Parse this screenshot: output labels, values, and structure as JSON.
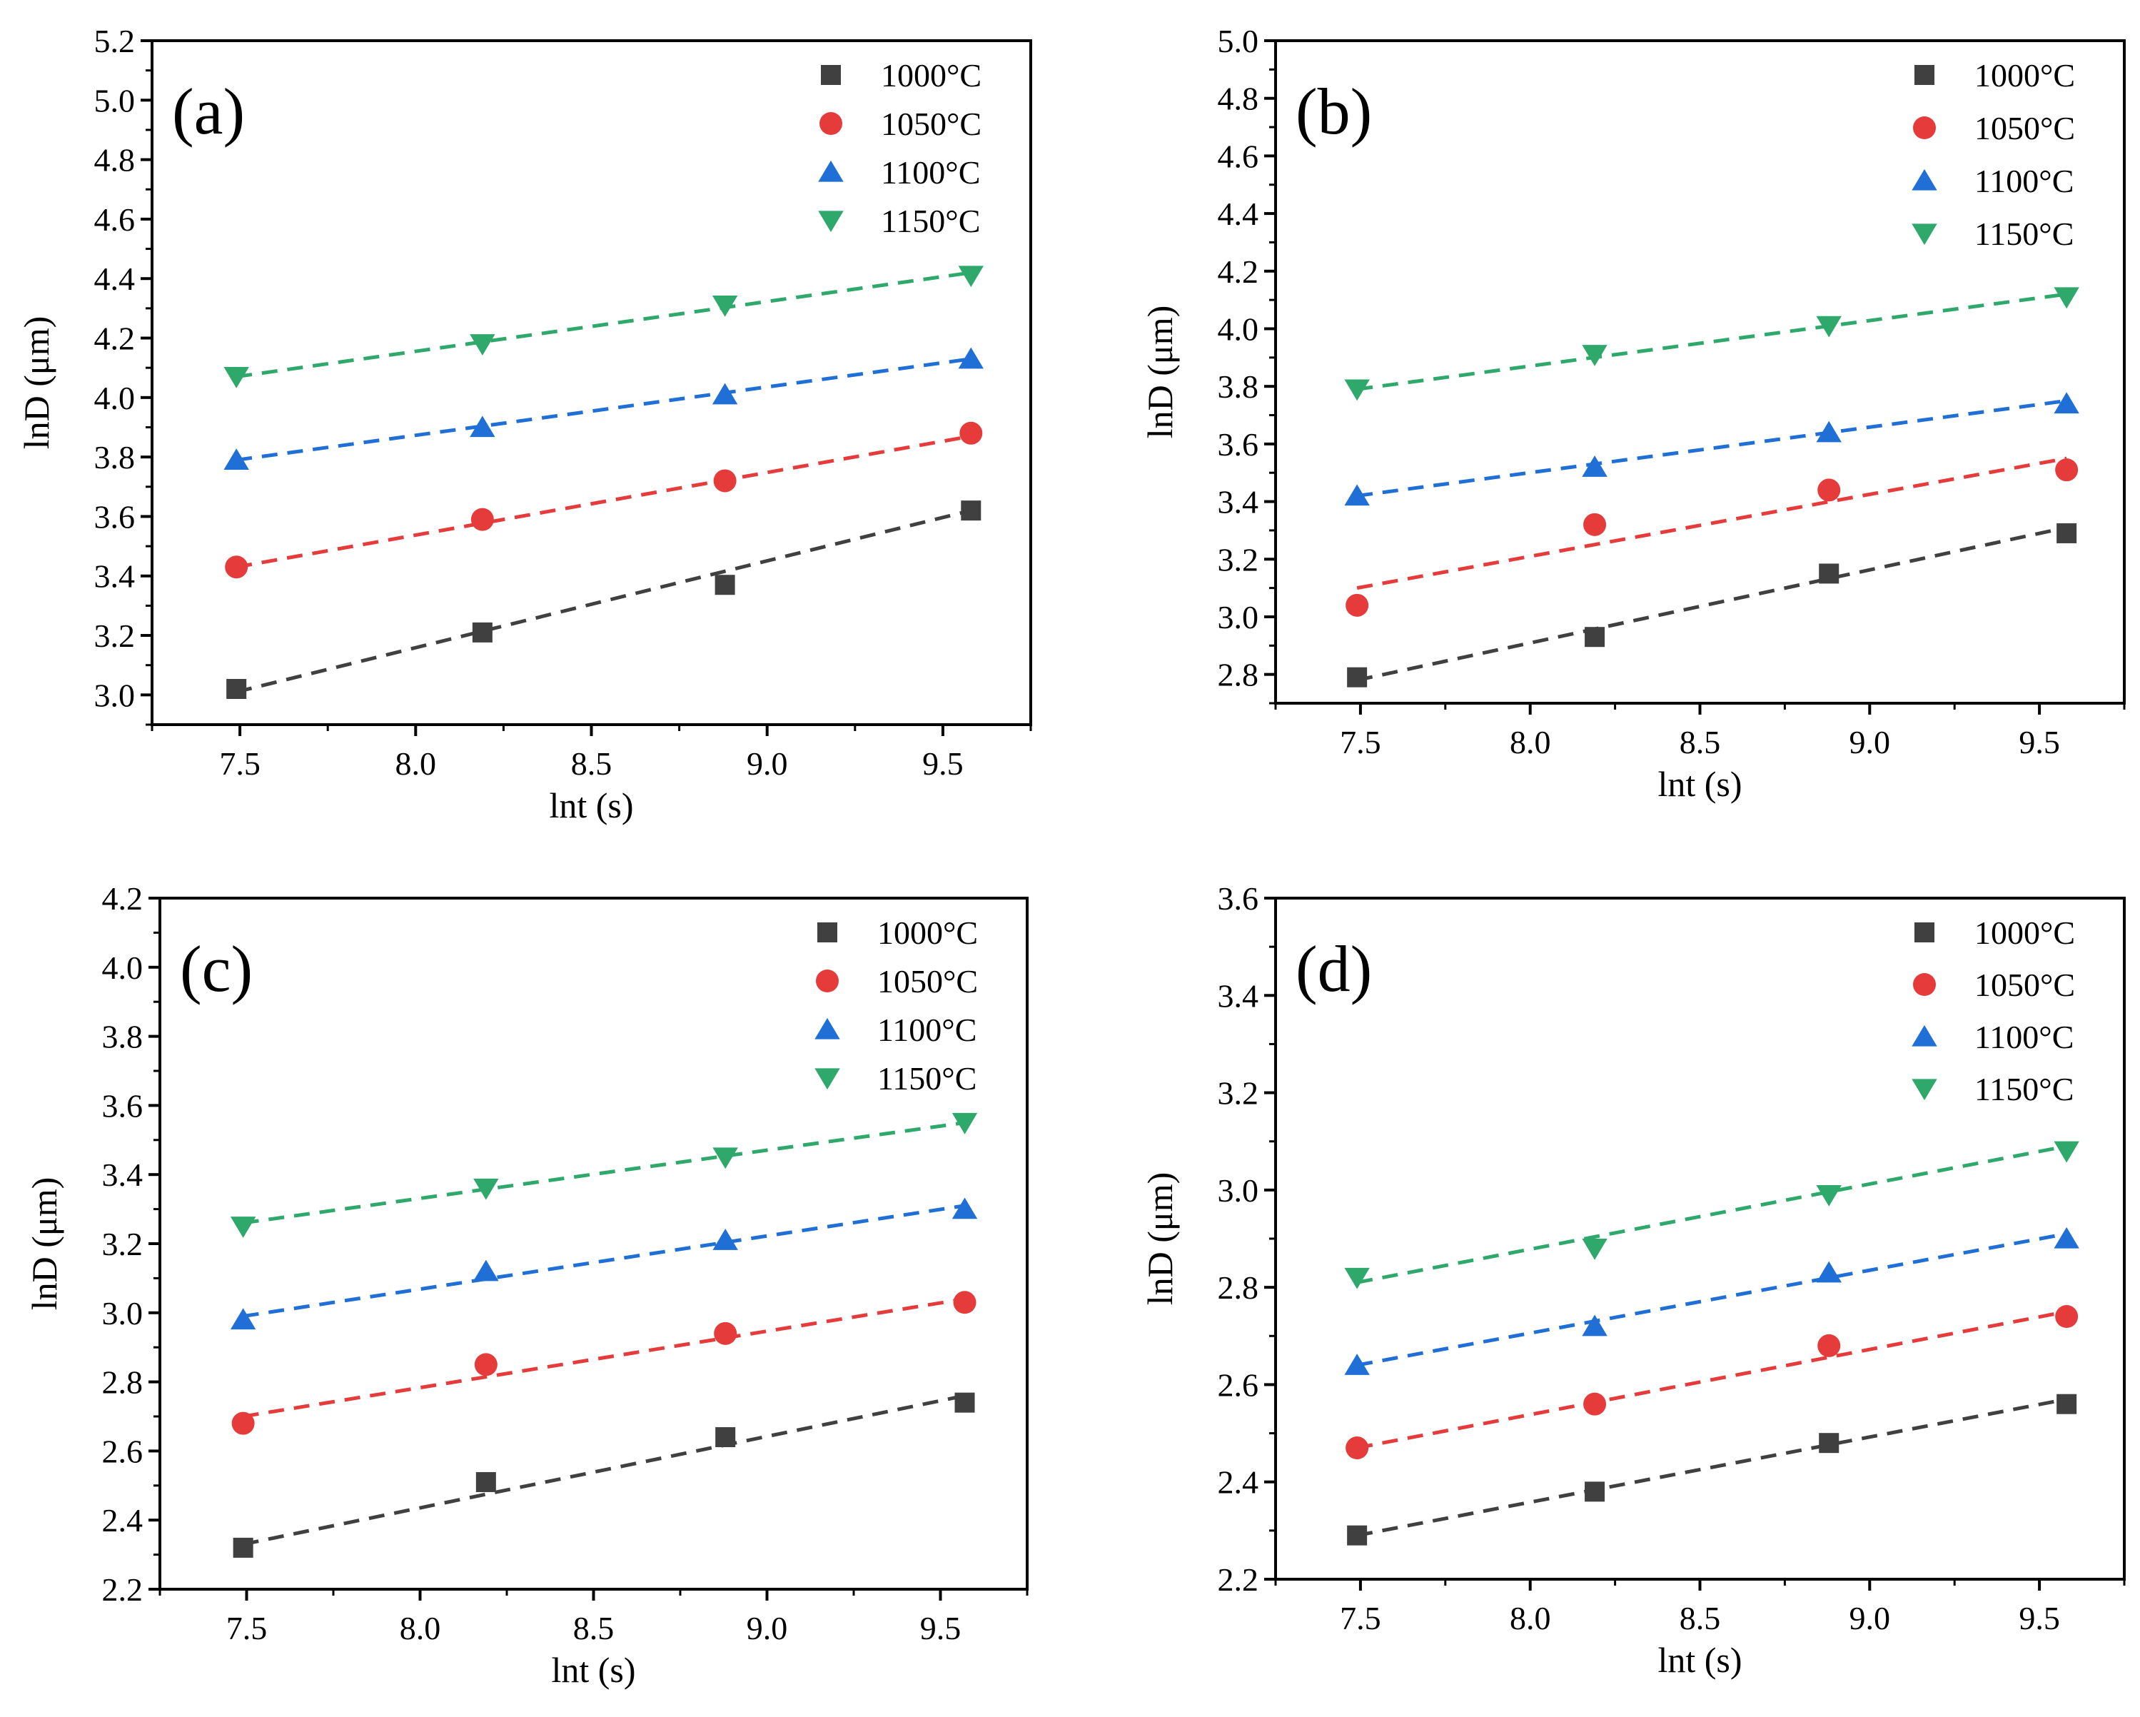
{
  "chart_data": [
    {
      "type": "scatter",
      "panel_label": "(a)",
      "xlabel": "lnt (s)",
      "ylabel": "lnD (μm)",
      "xlim": [
        7.25,
        9.75
      ],
      "ylim": [
        2.9,
        5.2
      ],
      "x_ticks": [
        "7.5",
        "8.0",
        "8.5",
        "9.0",
        "9.5"
      ],
      "y_ticks": [
        "3.0",
        "3.2",
        "3.4",
        "3.6",
        "3.8",
        "4.0",
        "4.2",
        "4.4",
        "4.6",
        "4.8",
        "5.0",
        "5.2"
      ],
      "x": [
        7.49,
        8.19,
        8.88,
        9.58
      ],
      "legend_position": "top-right",
      "series": [
        {
          "name": "1000°C",
          "values": [
            3.02,
            3.21,
            3.37,
            3.62
          ],
          "fit": [
            3.01,
            3.62
          ]
        },
        {
          "name": "1050°C",
          "values": [
            3.43,
            3.59,
            3.72,
            3.88
          ],
          "fit": [
            3.43,
            3.87
          ]
        },
        {
          "name": "1100°C",
          "values": [
            3.79,
            3.9,
            4.01,
            4.13
          ],
          "fit": [
            3.79,
            4.13
          ]
        },
        {
          "name": "1150°C",
          "values": [
            4.07,
            4.18,
            4.31,
            4.41
          ],
          "fit": [
            4.07,
            4.42
          ]
        }
      ]
    },
    {
      "type": "scatter",
      "panel_label": "(b)",
      "xlabel": "lnt (s)",
      "ylabel": "lnD (μm)",
      "xlim": [
        7.25,
        9.75
      ],
      "ylim": [
        2.7,
        5.0
      ],
      "x_ticks": [
        "7.5",
        "8.0",
        "8.5",
        "9.0",
        "9.5"
      ],
      "y_ticks": [
        "2.8",
        "3.0",
        "3.2",
        "3.4",
        "3.6",
        "3.8",
        "4.0",
        "4.2",
        "4.4",
        "4.6",
        "4.8",
        "5.0"
      ],
      "x": [
        7.49,
        8.19,
        8.88,
        9.58
      ],
      "legend_position": "top-right",
      "series": [
        {
          "name": "1000°C",
          "values": [
            2.79,
            2.93,
            3.15,
            3.29
          ],
          "fit": [
            2.78,
            3.31
          ]
        },
        {
          "name": "1050°C",
          "values": [
            3.04,
            3.32,
            3.44,
            3.51
          ],
          "fit": [
            3.1,
            3.55
          ]
        },
        {
          "name": "1100°C",
          "values": [
            3.42,
            3.52,
            3.64,
            3.74
          ],
          "fit": [
            3.42,
            3.75
          ]
        },
        {
          "name": "1150°C",
          "values": [
            3.79,
            3.91,
            4.01,
            4.11
          ],
          "fit": [
            3.79,
            4.12
          ]
        }
      ]
    },
    {
      "type": "scatter",
      "panel_label": "(c)",
      "xlabel": "lnt (s)",
      "ylabel": "lnD (μm)",
      "xlim": [
        7.25,
        9.75
      ],
      "ylim": [
        2.2,
        4.2
      ],
      "x_ticks": [
        "7.5",
        "8.0",
        "8.5",
        "9.0",
        "9.5"
      ],
      "y_ticks": [
        "2.2",
        "2.4",
        "2.6",
        "2.8",
        "3.0",
        "3.2",
        "3.4",
        "3.6",
        "3.8",
        "4.0",
        "4.2"
      ],
      "x": [
        7.49,
        8.19,
        8.88,
        9.57
      ],
      "legend_position": "top-right",
      "series": [
        {
          "name": "1000°C",
          "values": [
            2.32,
            2.51,
            2.64,
            2.74
          ],
          "fit": [
            2.33,
            2.76
          ]
        },
        {
          "name": "1050°C",
          "values": [
            2.68,
            2.85,
            2.94,
            3.03
          ],
          "fit": [
            2.7,
            3.04
          ]
        },
        {
          "name": "1100°C",
          "values": [
            2.98,
            3.12,
            3.21,
            3.3
          ],
          "fit": [
            2.99,
            3.31
          ]
        },
        {
          "name": "1150°C",
          "values": [
            3.25,
            3.36,
            3.45,
            3.55
          ],
          "fit": [
            3.26,
            3.55
          ]
        }
      ]
    },
    {
      "type": "scatter",
      "panel_label": "(d)",
      "xlabel": "lnt (s)",
      "ylabel": "lnD (μm)",
      "xlim": [
        7.25,
        9.75
      ],
      "ylim": [
        2.2,
        3.6
      ],
      "x_ticks": [
        "7.5",
        "8.0",
        "8.5",
        "9.0",
        "9.5"
      ],
      "y_ticks": [
        "2.2",
        "2.4",
        "2.6",
        "2.8",
        "3.0",
        "3.2",
        "3.4",
        "3.6"
      ],
      "x": [
        7.49,
        8.19,
        8.88,
        9.58
      ],
      "legend_position": "top-right",
      "series": [
        {
          "name": "1000°C",
          "values": [
            2.29,
            2.38,
            2.48,
            2.56
          ],
          "fit": [
            2.29,
            2.57
          ]
        },
        {
          "name": "1050°C",
          "values": [
            2.47,
            2.56,
            2.68,
            2.74
          ],
          "fit": [
            2.47,
            2.75
          ]
        },
        {
          "name": "1100°C",
          "values": [
            2.64,
            2.72,
            2.83,
            2.9
          ],
          "fit": [
            2.64,
            2.91
          ]
        },
        {
          "name": "1150°C",
          "values": [
            2.82,
            2.88,
            2.99,
            3.08
          ],
          "fit": [
            2.81,
            3.09
          ]
        }
      ]
    }
  ],
  "styles": {
    "series_colors": [
      "#404040",
      "#e63b3b",
      "#1f6fd6",
      "#2ea86b"
    ],
    "series_markers": [
      "square",
      "circle",
      "triangle-up",
      "triangle-down"
    ],
    "axis_color": "#000000"
  }
}
